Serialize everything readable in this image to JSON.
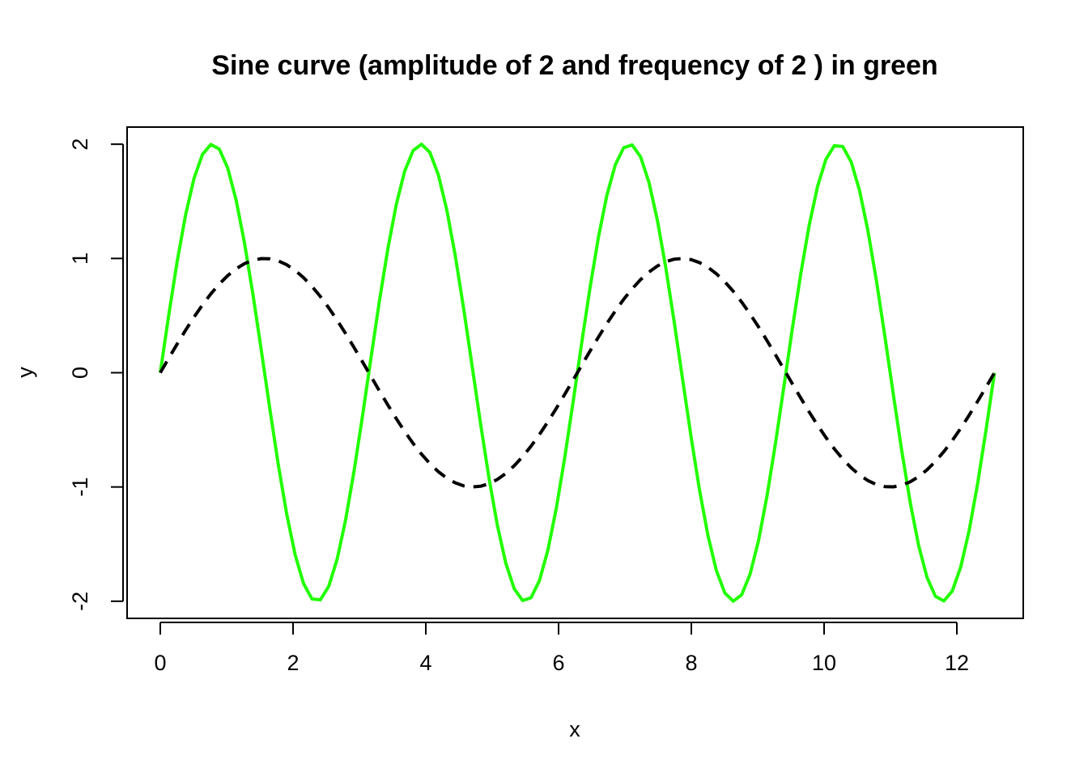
{
  "chart_data": {
    "type": "line",
    "title": "Sine curve (amplitude of 2 and frequency of 2 ) in green",
    "xlabel": "x",
    "ylabel": "y",
    "xlim": [
      -0.5,
      13.0
    ],
    "ylim": [
      -2.15,
      2.15
    ],
    "xticks": [
      0,
      2,
      4,
      6,
      8,
      10,
      12
    ],
    "xtick_labels": [
      "0",
      "2",
      "4",
      "6",
      "8",
      "10",
      "12"
    ],
    "yticks": [
      -2,
      -1,
      0,
      1,
      2
    ],
    "ytick_labels": [
      "-2",
      "-1",
      "0",
      "1",
      "2"
    ],
    "grid": false,
    "legend": "none",
    "x_range": [
      0,
      12.566
    ],
    "series": [
      {
        "function": "2*sin(2*x)",
        "amplitude": 2,
        "frequency": 2,
        "color": "#22ff00",
        "style": "solid",
        "points": 100
      },
      {
        "function": "sin(x)",
        "amplitude": 1,
        "frequency": 1,
        "color": "#000000",
        "style": "dashed",
        "points": 100
      }
    ]
  }
}
